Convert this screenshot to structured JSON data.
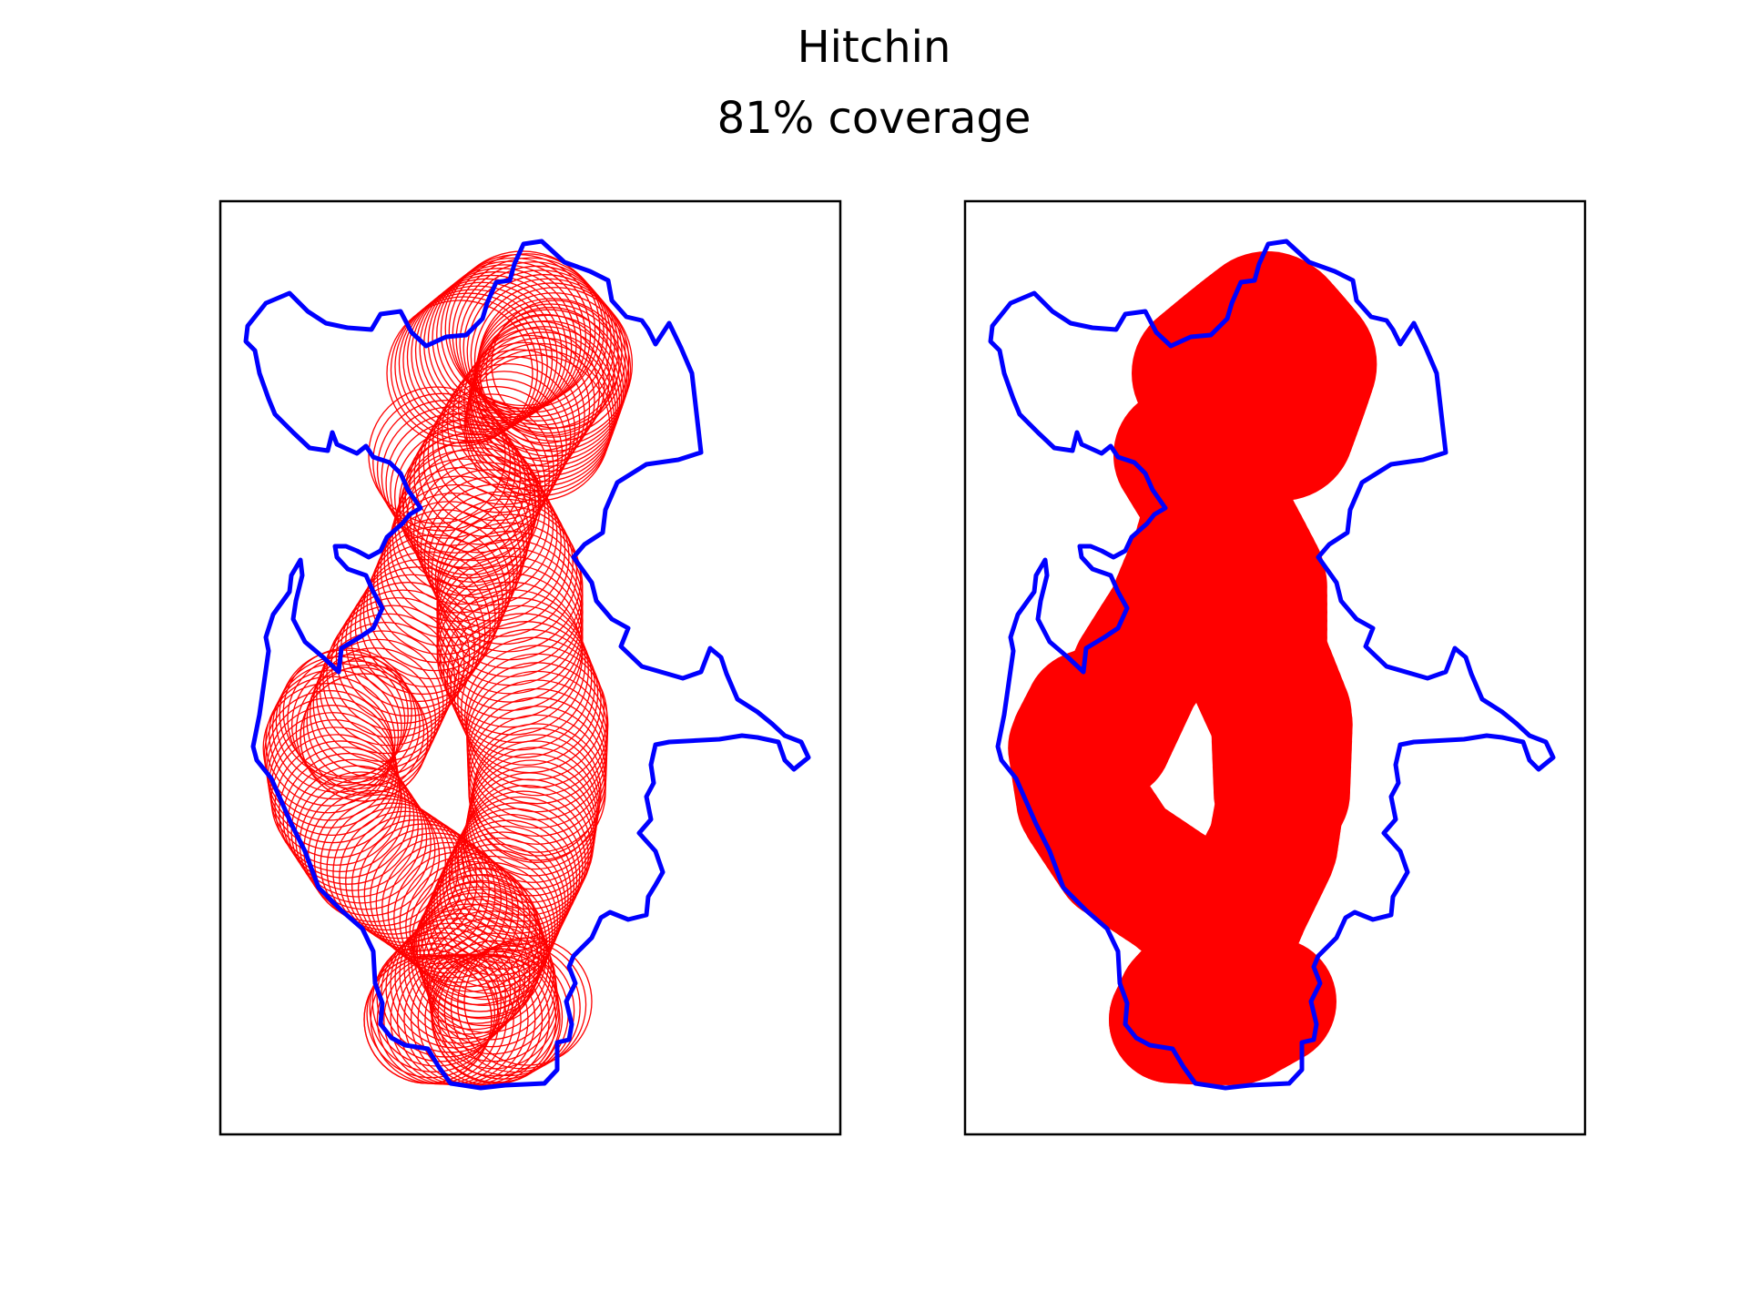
{
  "figure": {
    "title": "Hitchin",
    "subtitle": "81% coverage"
  },
  "colors": {
    "boundary": "#0000ff",
    "coverage": "#ff0000",
    "axes_frame": "#000000"
  },
  "panels": [
    {
      "name": "circles-outline",
      "style": "outline"
    },
    {
      "name": "circles-filled",
      "style": "filled"
    }
  ]
}
